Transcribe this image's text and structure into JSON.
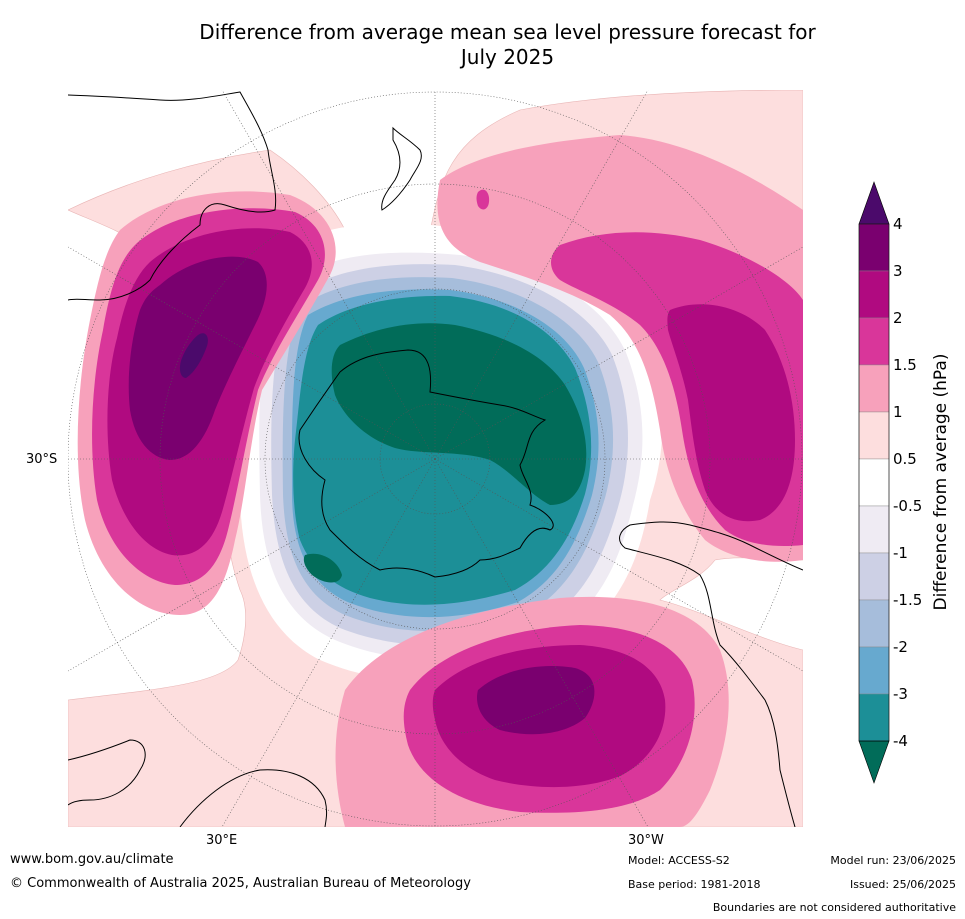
{
  "title_line1": "Difference from average mean sea level pressure forecast for",
  "title_line2": "July 2025",
  "map": {
    "projection": "south-polar-stereographic",
    "lat_label": "30°S",
    "lon_labels": [
      "30°E",
      "30°W"
    ]
  },
  "legend": {
    "title": "Difference from average (hPa)",
    "ticks": [
      "4",
      "3",
      "2",
      "1.5",
      "1",
      "0.5",
      "-0.5",
      "-1",
      "-1.5",
      "-2",
      "-3",
      "-4"
    ],
    "colors": {
      "gt4": "#4b0a6b",
      "3to4": "#7a006f",
      "2to3": "#b00a80",
      "1.5to2": "#d9369a",
      "1to1.5": "#f7a1bb",
      "0.5to1": "#fddede",
      "neutral": "#ffffff",
      "m0.5tom1": "#efebf3",
      "m1tom1.5": "#cdd0e5",
      "m1.5tom2": "#a6bddb",
      "m2tom3": "#67a9cf",
      "m3tom4": "#1c8f97",
      "ltm4": "#016c59"
    }
  },
  "footer": {
    "website": "www.bom.gov.au/climate",
    "copyright": "© Commonwealth of Australia 2025, Australian Bureau of Meteorology",
    "model": "Model: ACCESS-S2",
    "base_period": "Base period: 1981-2018",
    "model_run": "Model run: 23/06/2025",
    "issued": "Issued: 25/06/2025",
    "disclaimer": "Boundaries are not considered authoritative"
  }
}
